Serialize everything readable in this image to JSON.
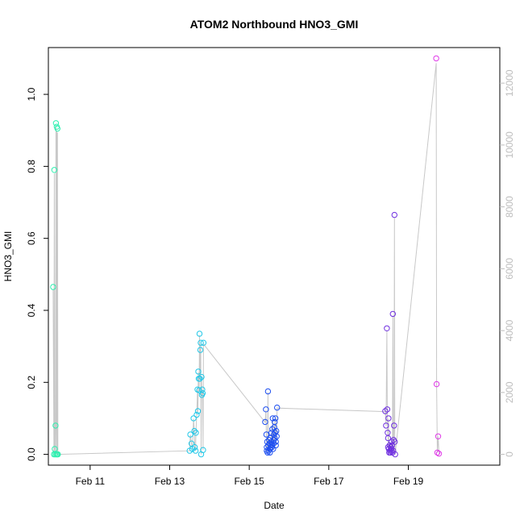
{
  "chart_data": {
    "type": "scatter",
    "title": "ATOM2 Northbound HNO3_GMI",
    "xlabel": "Date",
    "ylabel": "HNO3_GMI",
    "xlim": [
      9.95,
      21.3
    ],
    "ylim": [
      -0.03,
      1.13
    ],
    "y2lim": [
      -350,
      13150
    ],
    "x_ticks": [
      11,
      13,
      15,
      17,
      19
    ],
    "x_tick_labels": [
      "Feb 11",
      "Feb 13",
      "Feb 15",
      "Feb 17",
      "Feb 19"
    ],
    "y_ticks": [
      0.0,
      0.2,
      0.4,
      0.6,
      0.8,
      1.0
    ],
    "y_tick_labels": [
      "0.0",
      "0.2",
      "0.4",
      "0.6",
      "0.8",
      "1.0"
    ],
    "y2_ticks": [
      0,
      2000,
      4000,
      6000,
      8000,
      10000,
      12000
    ],
    "y2_tick_labels": [
      "0",
      "2000",
      "4000",
      "6000",
      "8000",
      "10000",
      "12000"
    ],
    "grid": false,
    "secondary_line_color": "#c8c8c8",
    "series": [
      {
        "color": "#2ef0b0",
        "x": [
          10.07,
          10.09,
          10.1,
          10.11,
          10.12,
          10.13,
          10.14,
          10.15,
          10.16,
          10.17,
          10.18,
          10.19
        ],
        "y": [
          0.465,
          0.0,
          0.79,
          0.015,
          0.0,
          0.08,
          0.92,
          0.0,
          0.91,
          0.0,
          0.905,
          0.0
        ]
      },
      {
        "color": "#22c8e8",
        "x": [
          13.5,
          13.52,
          13.55,
          13.57,
          13.6,
          13.62,
          13.63,
          13.65,
          13.66,
          13.68,
          13.7,
          13.71,
          13.72,
          13.73,
          13.74,
          13.75,
          13.76,
          13.77,
          13.78,
          13.79,
          13.8,
          13.81,
          13.82,
          13.83,
          13.84,
          13.85
        ],
        "y": [
          0.01,
          0.055,
          0.03,
          0.015,
          0.1,
          0.065,
          0.02,
          0.01,
          0.06,
          0.11,
          0.18,
          0.12,
          0.23,
          0.21,
          0.178,
          0.335,
          0.21,
          0.29,
          0.31,
          0.0,
          0.215,
          0.165,
          0.18,
          0.17,
          0.012,
          0.31
        ]
      },
      {
        "color": "#1e4ff0",
        "x": [
          15.4,
          15.42,
          15.43,
          15.44,
          15.45,
          15.46,
          15.47,
          15.48,
          15.49,
          15.5,
          15.51,
          15.52,
          15.53,
          15.54,
          15.55,
          15.56,
          15.57,
          15.58,
          15.59,
          15.6,
          15.61,
          15.62,
          15.63,
          15.64,
          15.65,
          15.66,
          15.67,
          15.68,
          15.69,
          15.7,
          15.44,
          15.52,
          15.57,
          15.62,
          15.64,
          15.67
        ],
        "y": [
          0.09,
          0.125,
          0.055,
          0.02,
          0.035,
          0.005,
          0.175,
          0.025,
          0.01,
          0.04,
          0.03,
          0.015,
          0.045,
          0.02,
          0.035,
          0.06,
          0.025,
          0.07,
          0.1,
          0.015,
          0.03,
          0.055,
          0.075,
          0.045,
          0.06,
          0.1,
          0.025,
          0.065,
          0.05,
          0.13,
          0.01,
          0.005,
          0.02,
          0.04,
          0.09,
          0.035
        ]
      },
      {
        "color": "#7030e0",
        "x": [
          18.42,
          18.44,
          18.46,
          18.47,
          18.48,
          18.49,
          18.5,
          18.51,
          18.52,
          18.53,
          18.54,
          18.55,
          18.56,
          18.57,
          18.58,
          18.59,
          18.6,
          18.61,
          18.62,
          18.63,
          18.64,
          18.65,
          18.66,
          18.67,
          18.49,
          18.58
        ],
        "y": [
          0.12,
          0.08,
          0.35,
          0.125,
          0.06,
          0.045,
          0.1,
          0.015,
          0.005,
          0.025,
          0.01,
          0.005,
          0.02,
          0.015,
          0.035,
          0.025,
          0.005,
          0.39,
          0.01,
          0.04,
          0.08,
          0.665,
          0.035,
          0.0,
          0.02,
          0.01
        ]
      },
      {
        "color": "#e03ae8",
        "x": [
          19.7,
          19.71,
          19.73,
          19.75,
          19.77
        ],
        "y": [
          1.1,
          0.195,
          0.005,
          0.05,
          0.002
        ]
      }
    ]
  }
}
